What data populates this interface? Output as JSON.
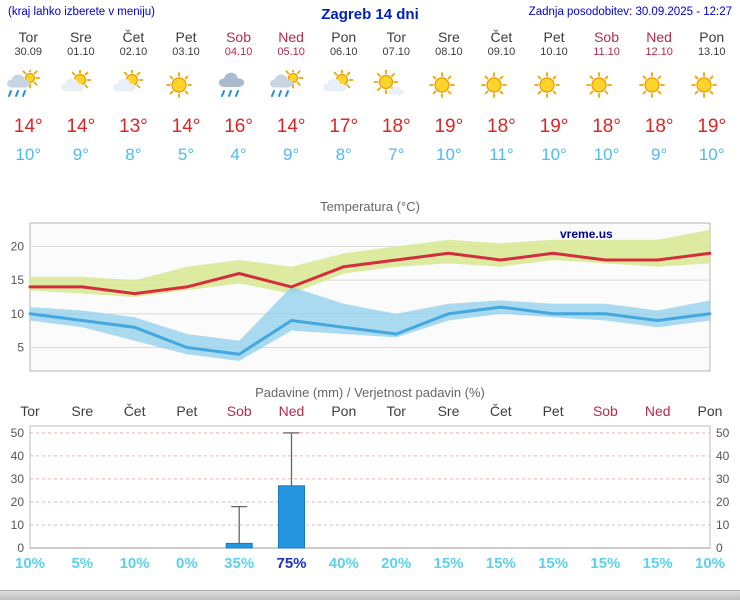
{
  "header": {
    "left_note": "(kraj lahko izberete v meniju)",
    "title": "Zagreb 14 dni",
    "updated": "Zadnja posodobitev: 30.09.2025 - 12:27"
  },
  "colors": {
    "accent_blue": "#0000cc",
    "tmax_red": "#d42e3e",
    "tmin_blue": "#44a8e0",
    "weekend_red": "#b52b4a",
    "pop_cyan": "#5ad2ee",
    "pop_strong_blue": "#2030c0",
    "bar_blue": "#2596e0",
    "band_green": "#d6e88e",
    "band_blue": "#8ecfec"
  },
  "days": [
    {
      "name": "Tor",
      "date": "30.09",
      "weekend": false,
      "icon": "rain-sun",
      "tmax": "14°",
      "tmin": "10°"
    },
    {
      "name": "Sre",
      "date": "01.10",
      "weekend": false,
      "icon": "partly-cloudy",
      "tmax": "14°",
      "tmin": "9°"
    },
    {
      "name": "Čet",
      "date": "02.10",
      "weekend": false,
      "icon": "partly-cloudy",
      "tmax": "13°",
      "tmin": "8°"
    },
    {
      "name": "Pet",
      "date": "03.10",
      "weekend": false,
      "icon": "sunny",
      "tmax": "14°",
      "tmin": "5°"
    },
    {
      "name": "Sob",
      "date": "04.10",
      "weekend": true,
      "icon": "heavy-rain",
      "tmax": "16°",
      "tmin": "4°"
    },
    {
      "name": "Ned",
      "date": "05.10",
      "weekend": true,
      "icon": "rain-sun",
      "tmax": "14°",
      "tmin": "9°"
    },
    {
      "name": "Pon",
      "date": "06.10",
      "weekend": false,
      "icon": "partly-cloudy",
      "tmax": "17°",
      "tmin": "8°"
    },
    {
      "name": "Tor",
      "date": "07.10",
      "weekend": false,
      "icon": "mostly-sunny",
      "tmax": "18°",
      "tmin": "7°"
    },
    {
      "name": "Sre",
      "date": "08.10",
      "weekend": false,
      "icon": "sunny",
      "tmax": "19°",
      "tmin": "10°"
    },
    {
      "name": "Čet",
      "date": "09.10",
      "weekend": false,
      "icon": "sunny",
      "tmax": "18°",
      "tmin": "11°"
    },
    {
      "name": "Pet",
      "date": "10.10",
      "weekend": false,
      "icon": "sunny",
      "tmax": "19°",
      "tmin": "10°"
    },
    {
      "name": "Sob",
      "date": "11.10",
      "weekend": true,
      "icon": "sunny",
      "tmax": "18°",
      "tmin": "10°"
    },
    {
      "name": "Ned",
      "date": "12.10",
      "weekend": true,
      "icon": "sunny",
      "tmax": "18°",
      "tmin": "9°"
    },
    {
      "name": "Pon",
      "date": "13.10",
      "weekend": false,
      "icon": "sunny",
      "tmax": "19°",
      "tmin": "10°"
    }
  ],
  "chart_data": [
    {
      "type": "line",
      "title": "Temperatura (°C)",
      "watermark": "vreme.us",
      "ylim": [
        1.5,
        23.5
      ],
      "yticks": [
        5,
        10,
        15,
        20
      ],
      "grid": true,
      "series": [
        {
          "name": "tmax",
          "values": [
            14,
            14,
            13,
            14,
            16,
            14,
            17,
            18,
            19,
            18,
            19,
            18,
            18,
            19
          ]
        },
        {
          "name": "tmin",
          "values": [
            10,
            9,
            8,
            5,
            4,
            9,
            8,
            7,
            10,
            11,
            10,
            10,
            9,
            10
          ]
        },
        {
          "name": "tmax_band_hi",
          "values": [
            15.5,
            15.5,
            15,
            17,
            18,
            17,
            19,
            20,
            21,
            20.5,
            21,
            21,
            21,
            22.5
          ]
        },
        {
          "name": "tmax_band_lo",
          "values": [
            13.5,
            13,
            12.5,
            13.5,
            14.5,
            13,
            16,
            17,
            17.5,
            17,
            18,
            17.5,
            17,
            17.5
          ]
        },
        {
          "name": "tmin_band_hi",
          "values": [
            11,
            10.5,
            9.5,
            7,
            6,
            14,
            11.5,
            10,
            11.5,
            12,
            11.5,
            11.5,
            10.5,
            12
          ]
        },
        {
          "name": "tmin_band_lo",
          "values": [
            9,
            8,
            6,
            4,
            3,
            7.5,
            7,
            6.5,
            9,
            10,
            9.5,
            9,
            8,
            9
          ]
        }
      ]
    },
    {
      "type": "bar",
      "title": "Padavine (mm) / Verjetnost padavin (%)",
      "x_labels": [
        "Tor",
        "Sre",
        "Čet",
        "Pet",
        "Sob",
        "Ned",
        "Pon",
        "Tor",
        "Sre",
        "Čet",
        "Pet",
        "Sob",
        "Ned",
        "Pon"
      ],
      "weekend_mask": [
        false,
        false,
        false,
        false,
        true,
        true,
        false,
        false,
        false,
        false,
        false,
        true,
        true,
        false
      ],
      "ylim": [
        0,
        53
      ],
      "yticks": [
        0,
        10,
        20,
        30,
        40,
        50
      ],
      "bars_mm": [
        0,
        0,
        0,
        0,
        2,
        27,
        0,
        0,
        0,
        0,
        0,
        0,
        0,
        0
      ],
      "whisker_max_mm": [
        0,
        0,
        0,
        0,
        18,
        50,
        0,
        0,
        0,
        0,
        0,
        0,
        0,
        0
      ],
      "pop_percent": [
        "10%",
        "5%",
        "10%",
        "0%",
        "35%",
        "75%",
        "40%",
        "20%",
        "15%",
        "15%",
        "15%",
        "15%",
        "15%",
        "10%"
      ],
      "pop_strong_index": 5
    }
  ]
}
